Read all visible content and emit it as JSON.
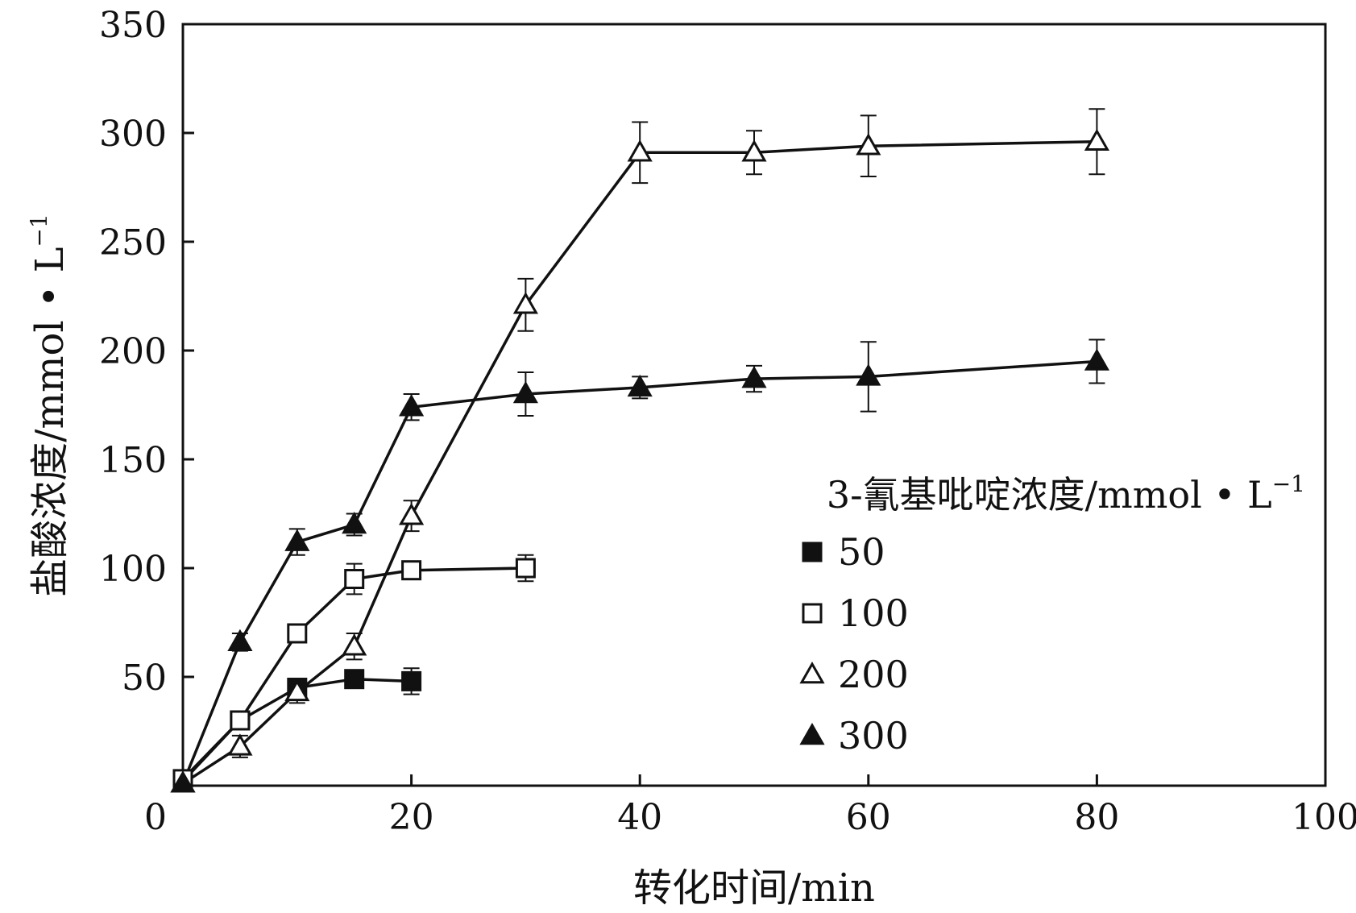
{
  "chart_data": {
    "type": "line",
    "xlabel": "转化时间/min",
    "ylabel": "盐酸浓度/mmol • L",
    "ylabel_sup": "−1",
    "xlim": [
      0,
      100
    ],
    "ylim": [
      0,
      350
    ],
    "x_ticks": [
      0,
      20,
      40,
      60,
      80,
      100
    ],
    "y_ticks": [
      50,
      100,
      150,
      200,
      250,
      300,
      350
    ],
    "grid": false,
    "legend": {
      "title": "3-氰基吡啶浓度/mmol • L",
      "title_sup": "−1",
      "placement": "right-middle"
    },
    "series": [
      {
        "name": "50",
        "marker": "square-filled",
        "x": [
          0,
          5,
          10,
          15,
          20
        ],
        "y": [
          2,
          30,
          45,
          49,
          48
        ],
        "err": [
          0,
          3,
          3,
          2,
          6
        ]
      },
      {
        "name": "100",
        "marker": "square-open",
        "x": [
          0,
          5,
          10,
          15,
          20,
          30
        ],
        "y": [
          3,
          30,
          70,
          95,
          99,
          100
        ],
        "err": [
          0,
          3,
          3,
          7,
          3,
          6
        ]
      },
      {
        "name": "200",
        "marker": "triangle-open",
        "x": [
          0,
          5,
          10,
          15,
          20,
          30,
          40,
          50,
          60,
          80
        ],
        "y": [
          1,
          18,
          43,
          64,
          124,
          221,
          291,
          291,
          294,
          296
        ],
        "err": [
          0,
          5,
          5,
          6,
          7,
          12,
          14,
          10,
          14,
          15
        ]
      },
      {
        "name": "300",
        "marker": "triangle-filled",
        "x": [
          0,
          5,
          10,
          15,
          20,
          30,
          40,
          50,
          60,
          80
        ],
        "y": [
          1,
          66,
          112,
          120,
          174,
          180,
          183,
          187,
          188,
          195
        ],
        "err": [
          0,
          4,
          6,
          5,
          6,
          10,
          5,
          6,
          16,
          10
        ]
      }
    ]
  }
}
